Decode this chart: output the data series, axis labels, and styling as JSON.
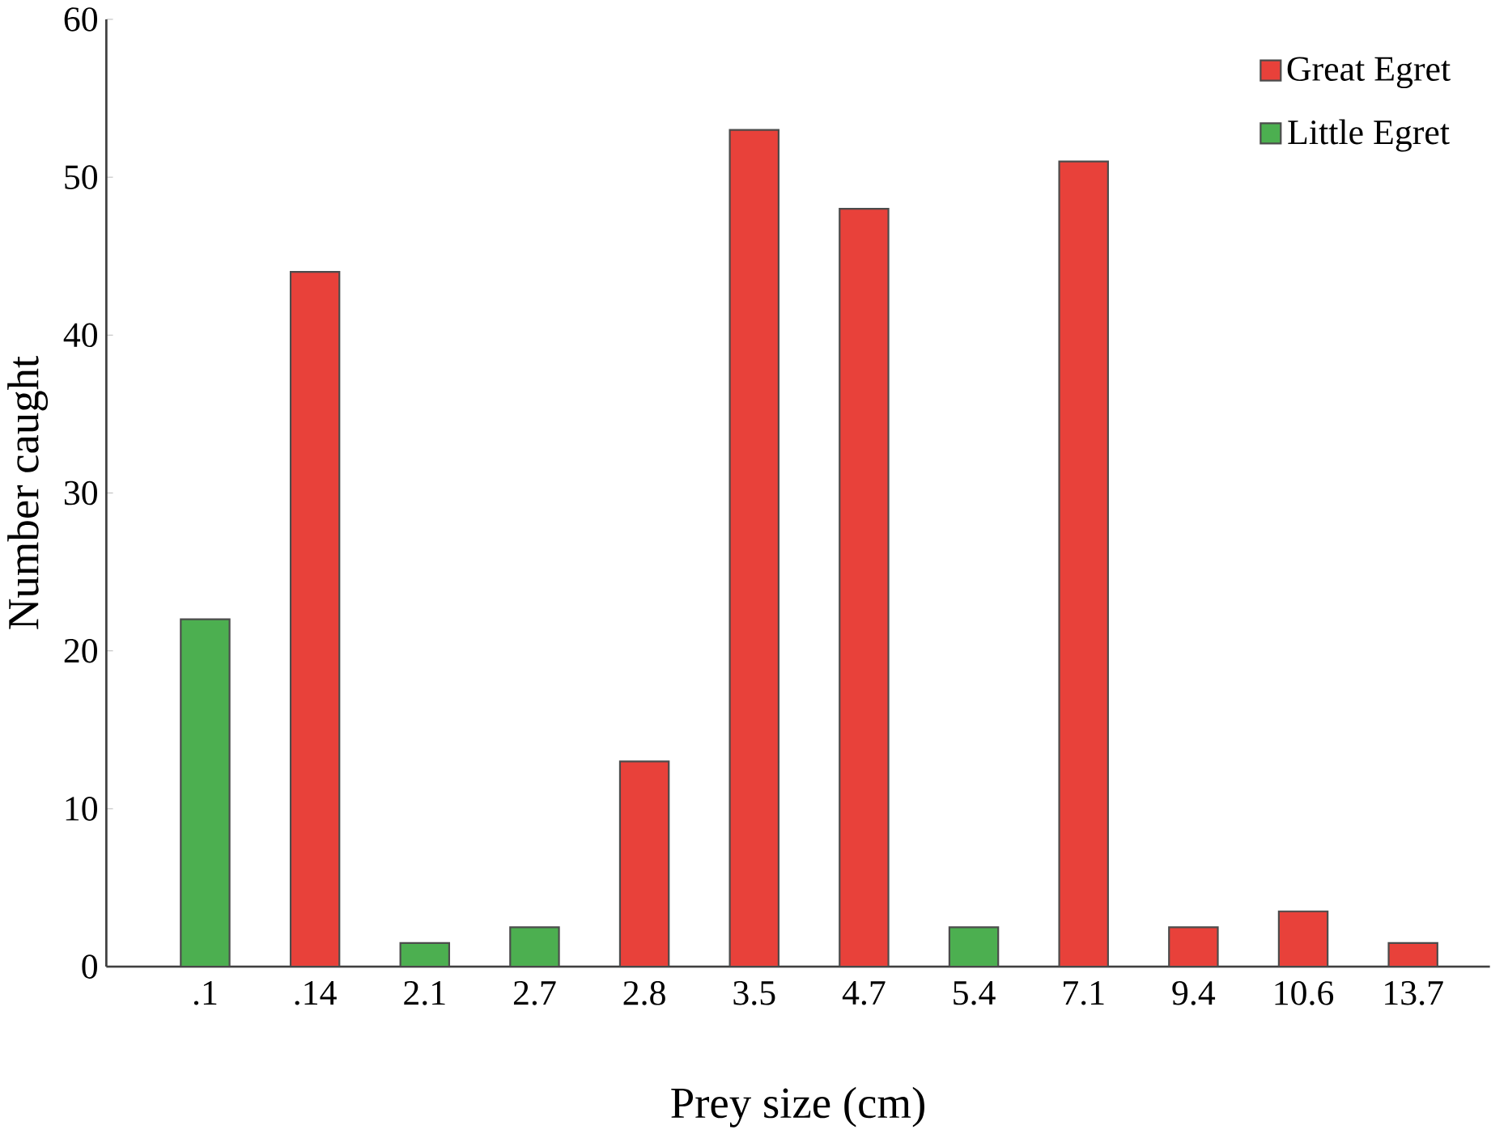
{
  "chart_data": {
    "type": "bar",
    "xlabel": "Prey size (cm)",
    "ylabel": "Number caught",
    "categories": [
      ".1",
      ".14",
      "2.1",
      "2.7",
      "2.8",
      "3.5",
      "4.7",
      "5.4",
      "7.1",
      "9.4",
      "10.6",
      "13.7"
    ],
    "series": [
      {
        "name": "Great Egret",
        "color": "#e8413a",
        "values": [
          null,
          44,
          null,
          null,
          13,
          53,
          48,
          null,
          51,
          2.5,
          3.5,
          1.5
        ]
      },
      {
        "name": "Little Egret",
        "color": "#4caf50",
        "values": [
          22,
          null,
          1.5,
          2.5,
          null,
          null,
          null,
          2.5,
          null,
          null,
          null,
          null
        ]
      }
    ],
    "ylim": [
      0,
      60
    ],
    "yticks": [
      0,
      10,
      20,
      30,
      40,
      50,
      60
    ],
    "legend": "top right",
    "grid": false
  }
}
